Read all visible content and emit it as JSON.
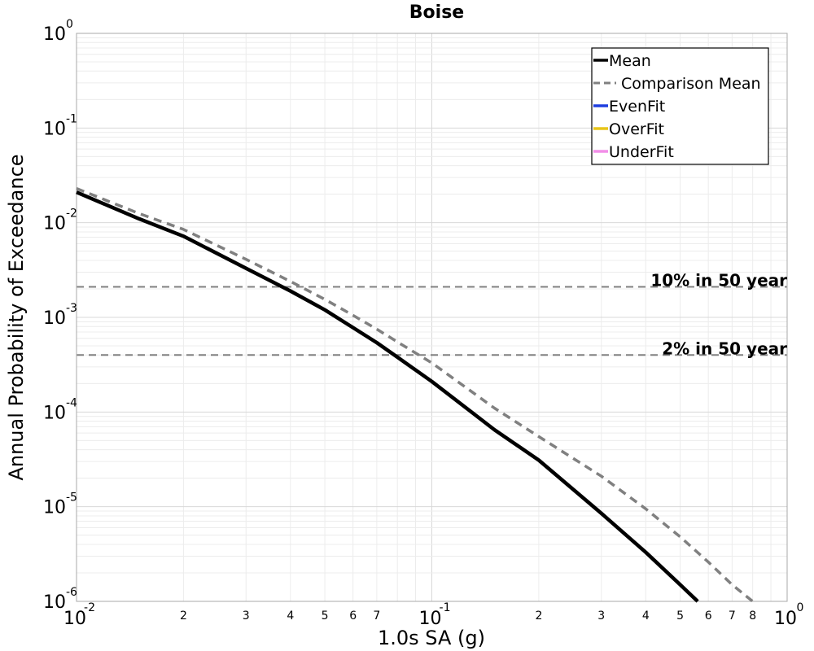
{
  "chart_data": {
    "type": "line",
    "title": "Boise",
    "xlabel": "1.0s SA (g)",
    "ylabel": "Annual Probability of Exceedance",
    "xscale": "log",
    "yscale": "log",
    "xlim": [
      0.01,
      1
    ],
    "ylim": [
      1e-06,
      1
    ],
    "grid": true,
    "legend_position": "top-right",
    "x_major_ticks": [
      {
        "base": "10",
        "exp": "-2",
        "value": 0.01
      },
      {
        "base": "10",
        "exp": "-1",
        "value": 0.1
      },
      {
        "base": "10",
        "exp": "0",
        "value": 1
      }
    ],
    "x_minor_ticks": [
      {
        "label": "2",
        "value": 0.02
      },
      {
        "label": "3",
        "value": 0.03
      },
      {
        "label": "4",
        "value": 0.04
      },
      {
        "label": "5",
        "value": 0.05
      },
      {
        "label": "6",
        "value": 0.06
      },
      {
        "label": "7",
        "value": 0.07
      },
      {
        "label": "2",
        "value": 0.2
      },
      {
        "label": "3",
        "value": 0.3
      },
      {
        "label": "4",
        "value": 0.4
      },
      {
        "label": "5",
        "value": 0.5
      },
      {
        "label": "6",
        "value": 0.6
      },
      {
        "label": "7",
        "value": 0.7
      },
      {
        "label": "8",
        "value": 0.8
      }
    ],
    "y_major_ticks": [
      {
        "base": "10",
        "exp": "0",
        "value": 1
      },
      {
        "base": "10",
        "exp": "-1",
        "value": 0.1
      },
      {
        "base": "10",
        "exp": "-2",
        "value": 0.01
      },
      {
        "base": "10",
        "exp": "-3",
        "value": 0.001
      },
      {
        "base": "10",
        "exp": "-4",
        "value": 0.0001
      },
      {
        "base": "10",
        "exp": "-5",
        "value": 1e-05
      },
      {
        "base": "10",
        "exp": "-6",
        "value": 1e-06
      }
    ],
    "series": [
      {
        "name": "Mean",
        "color": "#000000",
        "dash": "solid",
        "x": [
          0.01,
          0.015,
          0.02,
          0.03,
          0.04,
          0.05,
          0.06,
          0.07,
          0.08,
          0.1,
          0.15,
          0.2,
          0.3,
          0.4,
          0.5,
          0.56
        ],
        "y": [
          0.021,
          0.011,
          0.0072,
          0.0033,
          0.0019,
          0.0012,
          0.00078,
          0.00054,
          0.00038,
          0.00021,
          6.5e-05,
          3.1e-05,
          8.5e-06,
          3.3e-06,
          1.5e-06,
          1e-06
        ]
      },
      {
        "name": "Comparison Mean",
        "color": "#808080",
        "dash": "dashed",
        "x": [
          0.01,
          0.015,
          0.02,
          0.03,
          0.04,
          0.05,
          0.06,
          0.07,
          0.08,
          0.1,
          0.15,
          0.2,
          0.3,
          0.4,
          0.5,
          0.6,
          0.7,
          0.8
        ],
        "y": [
          0.023,
          0.0125,
          0.0085,
          0.0041,
          0.0024,
          0.00155,
          0.00105,
          0.00075,
          0.00055,
          0.00033,
          0.00011,
          5.5e-05,
          2.1e-05,
          9.5e-06,
          4.8e-06,
          2.6e-06,
          1.5e-06,
          1e-06
        ]
      },
      {
        "name": "EvenFit",
        "color": "#1f3fe0",
        "dash": "solid",
        "x": [],
        "y": []
      },
      {
        "name": "OverFit",
        "color": "#e8c619",
        "dash": "solid",
        "x": [],
        "y": []
      },
      {
        "name": "UnderFit",
        "color": "#f28ee8",
        "dash": "solid",
        "x": [],
        "y": []
      }
    ],
    "reference_lines": [
      {
        "label": "10% in 50 year",
        "y": 0.0021,
        "color": "#808080"
      },
      {
        "label": "2% in 50 year",
        "y": 0.0004,
        "color": "#808080"
      }
    ]
  }
}
